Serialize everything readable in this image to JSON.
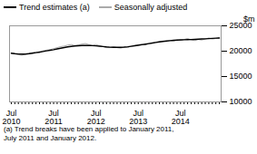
{
  "chart_data": {
    "type": "line",
    "ylabel": "$m",
    "footnote": "(a) Trend breaks have been applied to January 2011,\nJuly 2011 and January 2012.",
    "categories": [
      "Jul\n2010",
      null,
      null,
      null,
      null,
      null,
      null,
      null,
      null,
      null,
      null,
      null,
      "Jul\n2011",
      null,
      null,
      null,
      null,
      null,
      null,
      null,
      null,
      null,
      null,
      null,
      "Jul\n2012",
      null,
      null,
      null,
      null,
      null,
      null,
      null,
      null,
      null,
      null,
      null,
      "Jul\n2013",
      null,
      null,
      null,
      null,
      null,
      null,
      null,
      null,
      null,
      null,
      null,
      "Jul\n2014",
      null,
      null,
      null,
      null,
      null,
      null,
      null,
      null,
      null,
      null,
      null
    ],
    "series": [
      {
        "name": "Trend estimates (a)",
        "color": "#000000",
        "values": [
          19600,
          19500,
          19450,
          19420,
          19430,
          19500,
          19600,
          19700,
          19820,
          19940,
          20060,
          20180,
          20300,
          20440,
          20580,
          20720,
          20840,
          20940,
          21020,
          21080,
          21120,
          21130,
          21120,
          21090,
          21040,
          20980,
          20910,
          20840,
          20790,
          20760,
          20750,
          20760,
          20800,
          20870,
          20960,
          21060,
          21170,
          21280,
          21390,
          21500,
          21610,
          21720,
          21830,
          21930,
          22010,
          22080,
          22140,
          22190,
          22230,
          22260,
          22280,
          22300,
          22330,
          22360,
          22400,
          22440,
          22480,
          22520,
          22560,
          22600
        ]
      },
      {
        "name": "Seasonally adjusted",
        "color": "#aaaaaa",
        "values": [
          19600,
          19500,
          19300,
          19200,
          19450,
          19550,
          19700,
          19850,
          19700,
          20100,
          20200,
          20300,
          20500,
          20700,
          20900,
          21000,
          21200,
          21300,
          21100,
          21200,
          21400,
          21500,
          21300,
          21100,
          21300,
          21100,
          20900,
          20700,
          20700,
          20900,
          20700,
          20600,
          20800,
          20700,
          21000,
          21100,
          21300,
          21400,
          21200,
          21500,
          21600,
          21800,
          21900,
          22000,
          21900,
          22100,
          22000,
          22200,
          22100,
          22300,
          22500,
          22200,
          22100,
          22300,
          22200,
          22400,
          22600,
          22400,
          22500,
          22700
        ]
      }
    ],
    "ylim": [
      10000,
      25000
    ],
    "yticks": [
      10000,
      15000,
      20000,
      25000
    ],
    "grid": false,
    "legend": "top-left"
  }
}
